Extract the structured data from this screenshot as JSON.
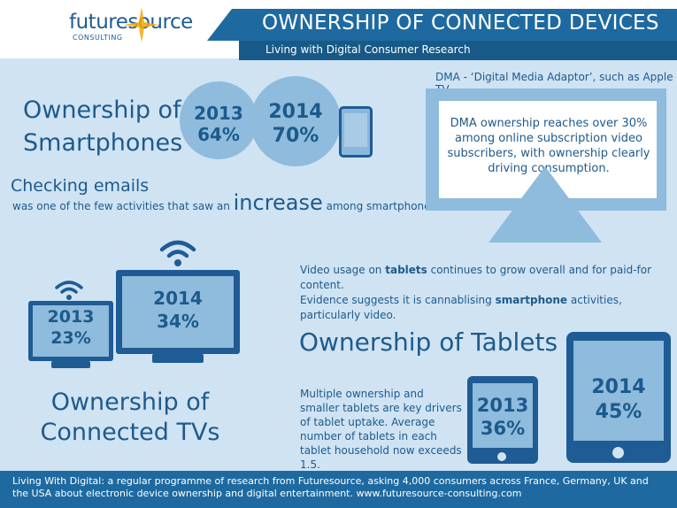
{
  "header": {
    "logo_word": "futuresource",
    "logo_sub": "CONSULTING",
    "title": "OWNERSHIP OF CONNECTED DEVICES",
    "subtitle": "Living with Digital Consumer Research"
  },
  "smartphones": {
    "title_line1": "Ownership of",
    "title_line2": "Smartphones",
    "y2013": "2013",
    "v2013": "64%",
    "y2014": "2014",
    "v2014": "70%"
  },
  "emails": {
    "head": "Checking emails",
    "pre": "was one of the few activities that saw an",
    "big": "increase",
    "post": "among smartphone users."
  },
  "dma": {
    "caption": "DMA - ‘Digital Media Adaptor’, such as Apple TV",
    "text": "DMA ownership reaches over 30% among online subscription video subscribers, with ownership clearly driving      consumption."
  },
  "tvs": {
    "y2013": "2013",
    "v2013": "23%",
    "y2014": "2014",
    "v2014": "34%",
    "title_line1": "Ownership of",
    "title_line2": "Connected TVs"
  },
  "tablets": {
    "usage_1a": "Video usage on ",
    "usage_1b": "tablets",
    "usage_1c": " continues to grow overall and for paid-for content.",
    "usage_2a": "Evidence suggests it is cannablising ",
    "usage_2b": "smartphone",
    "usage_2c": " activities, particularly video.",
    "title": "Ownership of Tablets",
    "desc": "Multiple ownership and smaller tablets are key drivers of tablet uptake. Average number of tablets in each tablet household now exceeds 1.5.",
    "y2013": "2013",
    "v2013": "36%",
    "y2014": "2014",
    "v2014": "45%"
  },
  "footer": {
    "lead": "Living With Digital:",
    "text": " a regular programme of research from Futuresource, asking 4,000 consumers across France, Germany, UK and the USA about electronic device ownership and digital entertainment. www.futuresource-consulting.com"
  },
  "colors": {
    "background": "#cfe3f3",
    "dark_blue": "#1f5b94",
    "light_blue": "#8fbbdc",
    "header_bar": "#1e6aa0"
  }
}
